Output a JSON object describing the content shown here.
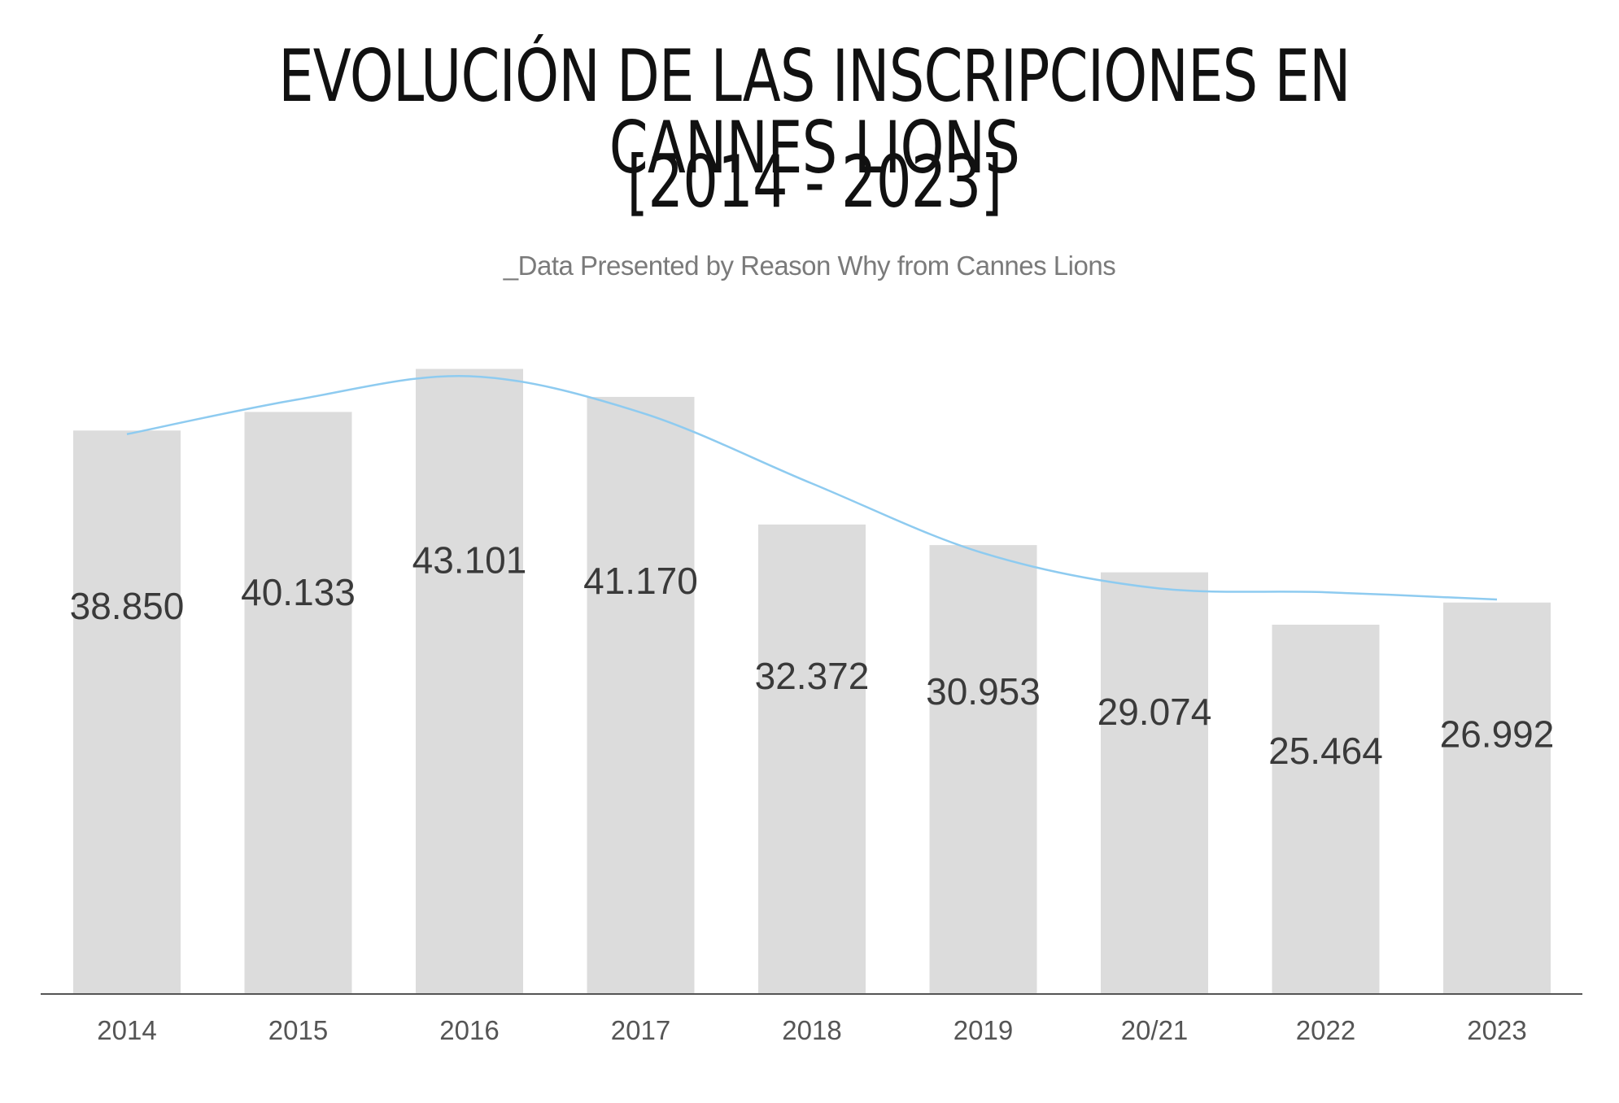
{
  "title_line1": "EVOLUCIÓN DE LAS INSCRIPCIONES EN CANNES LIONS",
  "title_line2": "[2014 - 2023]",
  "subtitle": "_Data Presented by Reason Why from Cannes Lions",
  "colors": {
    "bar": "#dcdcdc",
    "trend": "#8ecbf0",
    "axis": "#555555",
    "label": "#3a3a3a",
    "tick": "#555555"
  },
  "chart_data": {
    "type": "bar",
    "categories": [
      "2014",
      "2015",
      "2016",
      "2017",
      "2018",
      "2019",
      "20/21",
      "2022",
      "2023"
    ],
    "values": [
      38850,
      40133,
      43101,
      41170,
      32372,
      30953,
      29074,
      25464,
      26992
    ],
    "data_labels": [
      "38.850",
      "40.133",
      "43.101",
      "41.170",
      "32.372",
      "30.953",
      "29.074",
      "25.464",
      "26.992"
    ],
    "trend": [
      38600,
      41000,
      42600,
      40100,
      35200,
      30400,
      28000,
      27700,
      27200
    ],
    "ylim": [
      0,
      45000
    ],
    "grid": false,
    "legend": "none"
  }
}
